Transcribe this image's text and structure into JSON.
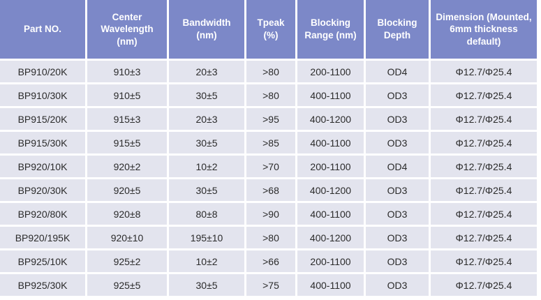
{
  "table": {
    "columns": [
      "Part NO.",
      "Center Wavelength (nm)",
      "Bandwidth (nm)",
      "Tpeak (%)",
      "Blocking Range (nm)",
      "Blocking Depth",
      "Dimension (Mounted, 6mm thickness default)"
    ],
    "rows": [
      [
        "BP910/20K",
        "910±3",
        "20±3",
        ">80",
        "200-1100",
        "OD4",
        "Φ12.7/Φ25.4"
      ],
      [
        "BP910/30K",
        "910±5",
        "30±5",
        ">80",
        "400-1100",
        "OD3",
        "Φ12.7/Φ25.4"
      ],
      [
        "BP915/20K",
        "915±3",
        "20±3",
        ">95",
        "400-1200",
        "OD3",
        "Φ12.7/Φ25.4"
      ],
      [
        "BP915/30K",
        "915±5",
        "30±5",
        ">85",
        "400-1100",
        "OD3",
        "Φ12.7/Φ25.4"
      ],
      [
        "BP920/10K",
        "920±2",
        "10±2",
        ">70",
        "200-1100",
        "OD4",
        "Φ12.7/Φ25.4"
      ],
      [
        "BP920/30K",
        "920±5",
        "30±5",
        ">68",
        "400-1200",
        "OD3",
        "Φ12.7/Φ25.4"
      ],
      [
        "BP920/80K",
        "920±8",
        "80±8",
        ">90",
        "400-1100",
        "OD3",
        "Φ12.7/Φ25.4"
      ],
      [
        "BP920/195K",
        "920±10",
        "195±10",
        ">80",
        "400-1200",
        "OD3",
        "Φ12.7/Φ25.4"
      ],
      [
        "BP925/10K",
        "925±2",
        "10±2",
        ">66",
        "200-1100",
        "OD3",
        "Φ12.7/Φ25.4"
      ],
      [
        "BP925/30K",
        "925±5",
        "30±5",
        ">75",
        "400-1100",
        "OD3",
        "Φ12.7/Φ25.4"
      ]
    ]
  },
  "colors": {
    "header_bg": "#7c88c8",
    "row_bg": "#e3e4ee",
    "header_text": "#ffffff",
    "cell_text": "#2b2b2b",
    "gridline": "#ffffff"
  }
}
